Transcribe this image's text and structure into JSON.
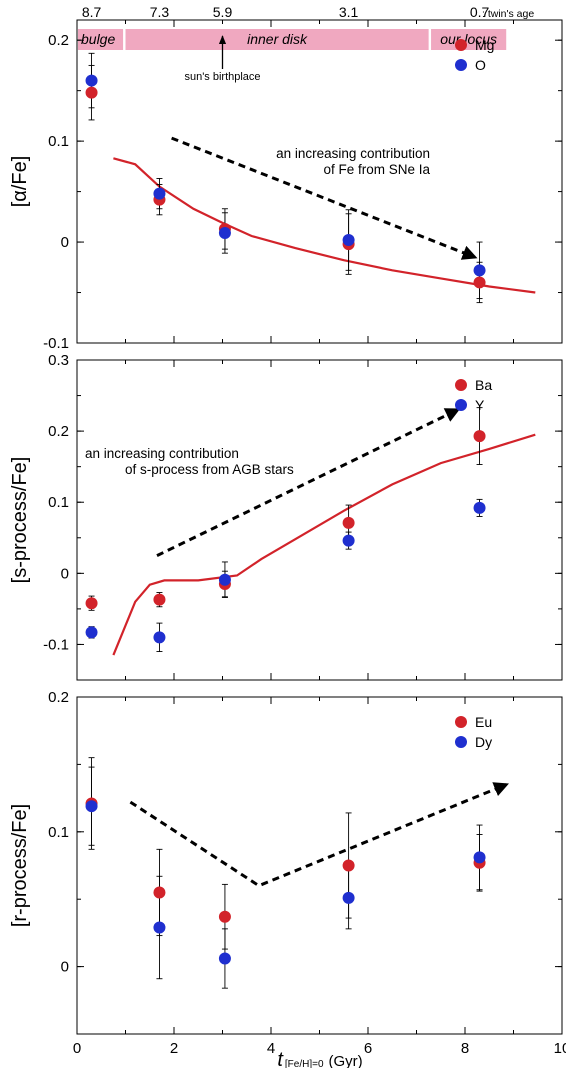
{
  "chart_data": {
    "type": "scatter",
    "shared_x": {
      "label_t": "t",
      "label_sub": "[Fe/H]=0",
      "label_unit": "(Gyr)",
      "xlim": [
        0,
        10
      ],
      "ticks": [
        0,
        2,
        4,
        6,
        8,
        10
      ]
    },
    "top_band": {
      "ages": [
        {
          "t": 0.3,
          "label": "8.7",
          "color": "#d2232a"
        },
        {
          "t": 1.7,
          "label": "7.3",
          "color": "#000000"
        },
        {
          "t": 3.0,
          "label": "5.9",
          "color": "#d2232a"
        },
        {
          "t": 5.6,
          "label": "3.1",
          "color": "#000000"
        },
        {
          "t": 8.3,
          "label": "0.7",
          "color": "#d2232a"
        }
      ],
      "age_caption": ": twin's age",
      "regions": [
        {
          "label": "bulge",
          "from": -0.1,
          "to": 0.95
        },
        {
          "label": "inner disk",
          "from": 1.0,
          "to": 7.25
        },
        {
          "label": "our locus",
          "from": 7.3,
          "to": 8.85
        }
      ],
      "band_color": "#f0a8c0",
      "arrow_label": "sun's birthplace",
      "arrow_t": 3.0
    },
    "panels": [
      {
        "id": "alpha",
        "ylabel": "[α/Fe]",
        "ylim": [
          -0.1,
          0.22
        ],
        "yticks": [
          -0.1,
          0,
          0.1,
          0.2
        ],
        "ytick_labels": [
          "-0.1",
          "0",
          "0.1",
          "0.2"
        ],
        "series": [
          {
            "name": "Mg",
            "color": "#d2232a",
            "x": [
              0.3,
              1.7,
              3.05,
              5.6,
              8.3
            ],
            "y": [
              0.148,
              0.042,
              0.013,
              -0.002,
              -0.04
            ],
            "err": [
              0.027,
              0.015,
              0.02,
              0.03,
              0.02
            ]
          },
          {
            "name": "O",
            "color": "#1f2fcf",
            "x": [
              0.3,
              1.7,
              3.05,
              5.6,
              8.3
            ],
            "y": [
              0.16,
              0.048,
              0.009,
              0.002,
              -0.028
            ],
            "err": [
              0.027,
              0.015,
              0.02,
              0.03,
              0.028
            ]
          }
        ],
        "model": {
          "x": [
            0.75,
            1.2,
            1.7,
            2.4,
            3.0,
            3.6,
            4.5,
            5.5,
            6.5,
            7.5,
            8.5,
            9.45
          ],
          "y": [
            0.083,
            0.077,
            0.055,
            0.033,
            0.019,
            0.006,
            -0.006,
            -0.018,
            -0.028,
            -0.036,
            -0.044,
            -0.05
          ]
        },
        "trend": {
          "points": [
            [
              1.95,
              0.103
            ],
            [
              8.2,
              -0.015
            ]
          ]
        },
        "annotation": [
          "an increasing contribution",
          "of Fe from SNe Ia"
        ]
      },
      {
        "id": "s",
        "ylabel": "[s-process/Fe]",
        "ylim": [
          -0.15,
          0.3
        ],
        "yticks": [
          -0.1,
          0,
          0.1,
          0.2,
          0.3
        ],
        "ytick_labels": [
          "-0.1",
          "0",
          "0.1",
          "0.2",
          "0.3"
        ],
        "series": [
          {
            "name": "Ba",
            "color": "#d2232a",
            "x": [
              0.3,
              1.7,
              3.05,
              5.6,
              8.3
            ],
            "y": [
              -0.042,
              -0.037,
              -0.015,
              0.071,
              0.193
            ],
            "err": [
              0.01,
              0.01,
              0.018,
              0.025,
              0.04
            ]
          },
          {
            "name": "Y",
            "color": "#1f2fcf",
            "x": [
              0.3,
              1.7,
              3.05,
              5.6,
              8.3
            ],
            "y": [
              -0.083,
              -0.09,
              -0.009,
              0.046,
              0.092
            ],
            "err": [
              0.008,
              0.02,
              0.025,
              0.012,
              0.012
            ]
          }
        ],
        "model": {
          "x": [
            0.75,
            1.2,
            1.5,
            1.8,
            2.5,
            3.3,
            3.8,
            4.5,
            5.5,
            6.5,
            7.5,
            8.5,
            9.45
          ],
          "y": [
            -0.115,
            -0.04,
            -0.016,
            -0.01,
            -0.01,
            -0.003,
            0.02,
            0.048,
            0.088,
            0.125,
            0.155,
            0.175,
            0.195
          ]
        },
        "trend": {
          "points": [
            [
              1.65,
              0.025
            ],
            [
              7.85,
              0.23
            ]
          ]
        },
        "annotation": [
          "an increasing contribution",
          "of s-process from AGB stars"
        ]
      },
      {
        "id": "r",
        "ylabel": "[r-process/Fe]",
        "ylim": [
          -0.05,
          0.2
        ],
        "yticks": [
          0,
          0.1,
          0.2
        ],
        "ytick_labels": [
          "0",
          "0.1",
          "0.2"
        ],
        "series": [
          {
            "name": "Eu",
            "color": "#d2232a",
            "x": [
              0.3,
              1.7,
              3.05,
              5.6,
              8.3
            ],
            "y": [
              0.121,
              0.055,
              0.037,
              0.075,
              0.077
            ],
            "err": [
              0.034,
              0.032,
              0.024,
              0.039,
              0.021
            ]
          },
          {
            "name": "Dy",
            "color": "#1f2fcf",
            "x": [
              0.3,
              1.7,
              3.05,
              5.6,
              8.3
            ],
            "y": [
              0.119,
              0.029,
              0.006,
              0.051,
              0.081
            ],
            "err": [
              0.029,
              0.038,
              0.022,
              0.023,
              0.024
            ]
          }
        ],
        "model": null,
        "trend": {
          "points": [
            [
              1.1,
              0.122
            ],
            [
              3.75,
              0.06
            ],
            [
              8.85,
              0.135
            ]
          ]
        },
        "annotation": []
      }
    ]
  }
}
